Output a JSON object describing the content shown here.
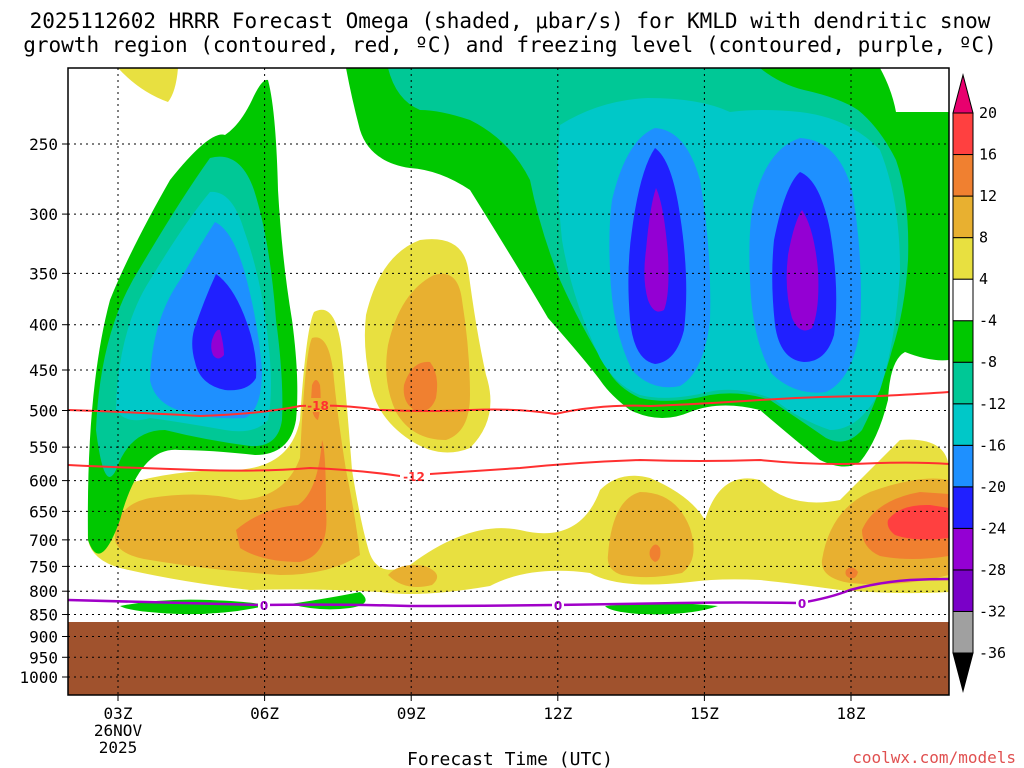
{
  "title_line1": "2025112602 HRRR Forecast Omega (shaded, μbar/s) for KMLD with dendritic snow",
  "title_line2": "growth region (contoured, red, ºC) and freezing level (contoured, purple, ºC)",
  "credit": "coolwx.com/models",
  "chart_data": {
    "type": "time-height contour",
    "xlabel": "Forecast Time (UTC)",
    "x_ticks": [
      {
        "hour": 3,
        "label": "03Z"
      },
      {
        "hour": 6,
        "label": "06Z"
      },
      {
        "hour": 9,
        "label": "09Z"
      },
      {
        "hour": 12,
        "label": "12Z"
      },
      {
        "hour": 15,
        "label": "15Z"
      },
      {
        "hour": 18,
        "label": "18Z"
      }
    ],
    "date_label": [
      "26NOV",
      "2025"
    ],
    "x_range_hours": [
      2,
      20
    ],
    "y_levels_hpa": [
      250,
      300,
      350,
      400,
      450,
      500,
      550,
      600,
      650,
      700,
      750,
      800,
      850,
      900,
      950,
      1000
    ],
    "y_axis": "pressure (log scale, inverted)",
    "ground_color": "#a0522d",
    "colorbar": {
      "levels": [
        -36,
        -32,
        -28,
        -24,
        -20,
        -16,
        -12,
        -8,
        -4,
        4,
        8,
        12,
        16,
        20
      ],
      "label_levels": [
        "-36",
        "-32",
        "-28",
        "-24",
        "-20",
        "-16",
        "-12",
        "-8",
        "-4",
        "4",
        "8",
        "12",
        "16",
        "20"
      ],
      "colors": [
        "#000000",
        "#a0a0a0",
        "#7a00c8",
        "#9400d3",
        "#2020ff",
        "#1e90ff",
        "#00c8c8",
        "#00c896",
        "#00c800",
        "#ffffff",
        "#e8e040",
        "#e8b030",
        "#f08030",
        "#ff4040",
        "#e8006e"
      ]
    },
    "dendritic_contours": [
      {
        "label": "-18",
        "color": "#ff3030"
      },
      {
        "label": "-12",
        "color": "#ff3030"
      }
    ],
    "freezing_contour": {
      "label": "0",
      "color": "#a000c8"
    }
  }
}
